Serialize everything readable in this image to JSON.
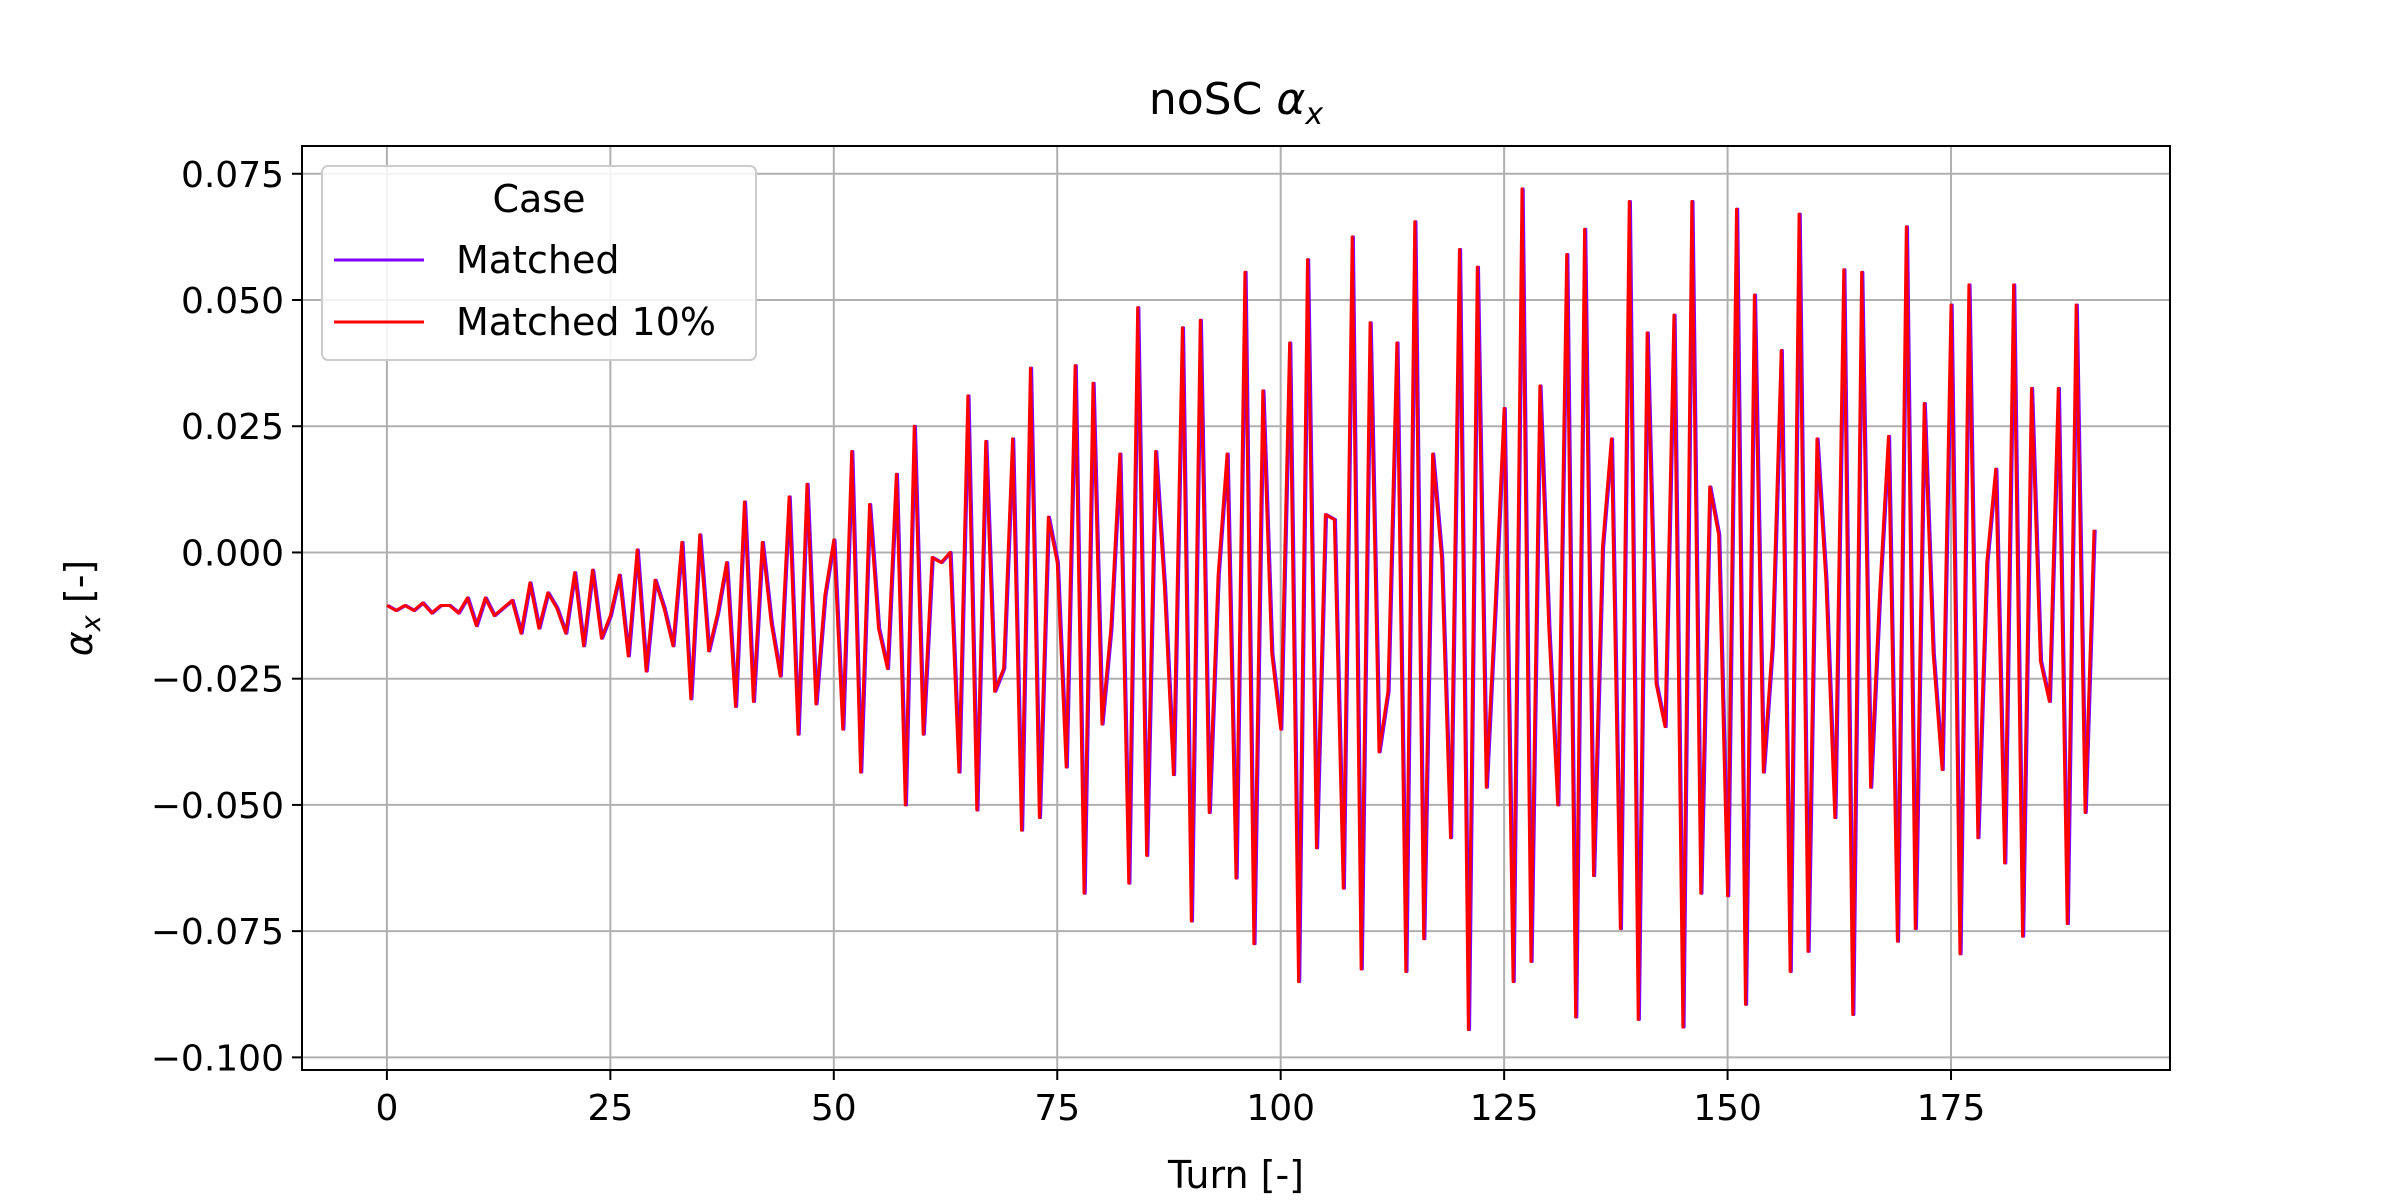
{
  "chart_data": {
    "type": "line",
    "title": "noSC α_x",
    "title_text": "noSC ",
    "title_math": "α",
    "title_math_sub": "x",
    "xlabel": "Turn [-]",
    "ylabel": "α_x [-]",
    "ylabel_math": "α",
    "ylabel_math_sub": "x",
    "ylabel_suffix": " [-]",
    "xlim": [
      -9.5,
      199.5
    ],
    "ylim": [
      -0.1025,
      0.0805
    ],
    "xticks": [
      0,
      25,
      50,
      75,
      100,
      125,
      150,
      175
    ],
    "xtick_labels": [
      "0",
      "25",
      "50",
      "75",
      "100",
      "125",
      "150",
      "175"
    ],
    "yticks": [
      -0.1,
      -0.075,
      -0.05,
      -0.025,
      0.0,
      0.025,
      0.05,
      0.075
    ],
    "ytick_labels": [
      "−0.100",
      "−0.075",
      "−0.050",
      "−0.025",
      "0.000",
      "0.025",
      "0.050",
      "0.075"
    ],
    "grid": true,
    "legend": {
      "title": "Case",
      "placement": "upper-left"
    },
    "series": [
      {
        "name": "Matched",
        "color": "#7f00ff",
        "x_start": 0,
        "x_step": 1,
        "values": [
          -0.0105,
          -0.0115,
          -0.0105,
          -0.0115,
          -0.01,
          -0.012,
          -0.0105,
          -0.0105,
          -0.012,
          -0.009,
          -0.0145,
          -0.009,
          -0.0125,
          -0.011,
          -0.0095,
          -0.016,
          -0.006,
          -0.015,
          -0.008,
          -0.011,
          -0.016,
          -0.004,
          -0.0185,
          -0.0035,
          -0.017,
          -0.0125,
          -0.0045,
          -0.0205,
          0.0005,
          -0.0235,
          -0.0055,
          -0.011,
          -0.0185,
          0.002,
          -0.029,
          0.0035,
          -0.0195,
          -0.012,
          -0.002,
          -0.0305,
          0.01,
          -0.0295,
          0.002,
          -0.014,
          -0.0245,
          0.011,
          -0.036,
          0.0135,
          -0.03,
          -0.0085,
          0.0025,
          -0.035,
          0.02,
          -0.0435,
          0.0095,
          -0.015,
          -0.023,
          0.0155,
          -0.05,
          0.025,
          -0.036,
          -0.001,
          -0.002,
          0.0,
          -0.0435,
          0.031,
          -0.051,
          0.022,
          -0.0275,
          -0.023,
          0.0225,
          -0.055,
          0.0365,
          -0.0525,
          0.007,
          -0.002,
          -0.0425,
          0.037,
          -0.0675,
          0.0335,
          -0.034,
          -0.015,
          0.0195,
          -0.0655,
          0.0485,
          -0.06,
          0.02,
          -0.007,
          -0.044,
          0.0445,
          -0.073,
          0.046,
          -0.0515,
          -0.0045,
          0.0195,
          -0.0645,
          0.0555,
          -0.0775,
          0.032,
          -0.02,
          -0.035,
          0.0415,
          -0.085,
          0.058,
          -0.0585,
          0.0075,
          0.0065,
          -0.0665,
          0.0625,
          -0.0825,
          0.0455,
          -0.0395,
          -0.0275,
          0.0415,
          -0.083,
          0.0655,
          -0.0765,
          0.0195,
          -0.001,
          -0.0565,
          0.06,
          -0.0945,
          0.0565,
          -0.0465,
          -0.0105,
          0.0285,
          -0.085,
          0.072,
          -0.081,
          0.033,
          -0.015,
          -0.05,
          0.059,
          -0.092,
          0.064,
          -0.064,
          0.001,
          0.0225,
          -0.0745,
          0.0695,
          -0.0925,
          0.0435,
          -0.026,
          -0.0345,
          0.047,
          -0.094,
          0.0695,
          -0.0675,
          0.013,
          0.0035,
          -0.068,
          0.068,
          -0.0895,
          0.051,
          -0.0435,
          -0.0185,
          0.04,
          -0.083,
          0.067,
          -0.079,
          0.0225,
          -0.0055,
          -0.0525,
          0.056,
          -0.0915,
          0.0555,
          -0.0465,
          -0.0085,
          0.023,
          -0.077,
          0.0645,
          -0.0745,
          0.0295,
          -0.02,
          -0.043,
          0.049,
          -0.0795,
          0.053,
          -0.0565,
          -0.002,
          0.0165,
          -0.0615,
          0.053,
          -0.076,
          0.0325,
          -0.0215,
          -0.0295,
          0.0325,
          -0.0735,
          0.049,
          -0.0515,
          0.0045
        ]
      },
      {
        "name": "Matched 10%",
        "color": "#ff0000",
        "x_start": 0,
        "x_step": 1,
        "values": [
          -0.0105,
          -0.0115,
          -0.0105,
          -0.0115,
          -0.01,
          -0.012,
          -0.0105,
          -0.0105,
          -0.012,
          -0.009,
          -0.0145,
          -0.009,
          -0.0125,
          -0.011,
          -0.0095,
          -0.016,
          -0.006,
          -0.015,
          -0.008,
          -0.011,
          -0.016,
          -0.004,
          -0.0185,
          -0.0035,
          -0.017,
          -0.0125,
          -0.0045,
          -0.0205,
          0.0005,
          -0.0235,
          -0.0055,
          -0.011,
          -0.0185,
          0.002,
          -0.029,
          0.0035,
          -0.0195,
          -0.012,
          -0.002,
          -0.0305,
          0.01,
          -0.0295,
          0.002,
          -0.014,
          -0.0245,
          0.011,
          -0.036,
          0.0135,
          -0.03,
          -0.0085,
          0.0025,
          -0.035,
          0.02,
          -0.0435,
          0.0095,
          -0.015,
          -0.023,
          0.0155,
          -0.05,
          0.025,
          -0.036,
          -0.001,
          -0.002,
          0.0,
          -0.0435,
          0.031,
          -0.051,
          0.022,
          -0.0275,
          -0.023,
          0.0225,
          -0.055,
          0.0365,
          -0.0525,
          0.007,
          -0.002,
          -0.0425,
          0.037,
          -0.0675,
          0.0335,
          -0.034,
          -0.015,
          0.0195,
          -0.0655,
          0.0485,
          -0.06,
          0.02,
          -0.007,
          -0.044,
          0.0445,
          -0.073,
          0.046,
          -0.0515,
          -0.0045,
          0.0195,
          -0.0645,
          0.0555,
          -0.0775,
          0.032,
          -0.02,
          -0.035,
          0.0415,
          -0.085,
          0.058,
          -0.0585,
          0.0075,
          0.0065,
          -0.0665,
          0.0625,
          -0.0825,
          0.0455,
          -0.0395,
          -0.0275,
          0.0415,
          -0.083,
          0.0655,
          -0.0765,
          0.0195,
          -0.001,
          -0.0565,
          0.06,
          -0.0945,
          0.0565,
          -0.0465,
          -0.0105,
          0.0285,
          -0.085,
          0.072,
          -0.081,
          0.033,
          -0.015,
          -0.05,
          0.059,
          -0.092,
          0.064,
          -0.064,
          0.001,
          0.0225,
          -0.0745,
          0.0695,
          -0.0925,
          0.0435,
          -0.026,
          -0.0345,
          0.047,
          -0.094,
          0.0695,
          -0.0675,
          0.013,
          0.0035,
          -0.068,
          0.068,
          -0.0895,
          0.051,
          -0.0435,
          -0.0185,
          0.04,
          -0.083,
          0.067,
          -0.079,
          0.0225,
          -0.0055,
          -0.0525,
          0.056,
          -0.0915,
          0.0555,
          -0.0465,
          -0.0085,
          0.023,
          -0.077,
          0.0645,
          -0.0745,
          0.0295,
          -0.02,
          -0.043,
          0.049,
          -0.0795,
          0.053,
          -0.0565,
          -0.002,
          0.0165,
          -0.0615,
          0.053,
          -0.076,
          0.0325,
          -0.0215,
          -0.0295,
          0.0325,
          -0.0735,
          0.049,
          -0.0515,
          0.0045
        ]
      }
    ]
  }
}
